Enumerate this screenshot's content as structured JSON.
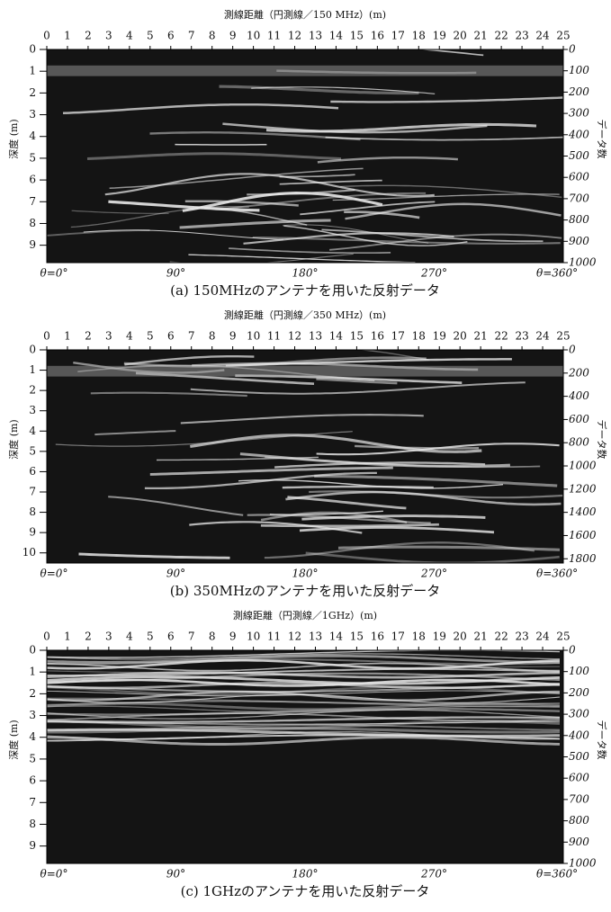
{
  "panels": [
    {
      "axis_title": "測線距離（円測線／150 MHz）(m)",
      "top_ticks": [
        0,
        1,
        2,
        3,
        4,
        5,
        6,
        7,
        8,
        9,
        10,
        11,
        12,
        13,
        14,
        15,
        16,
        17,
        18,
        19,
        20,
        21,
        22,
        23,
        24,
        25
      ],
      "depth_label": "深度 (m)",
      "depth_ticks": [
        0,
        1,
        2,
        3,
        4,
        5,
        6,
        7,
        8,
        9
      ],
      "data_label": "データ数",
      "data_ticks": [
        0,
        100,
        200,
        300,
        400,
        500,
        600,
        700,
        800,
        900,
        1000
      ],
      "angle_labels": [
        "θ=0°",
        "90°",
        "180°",
        "270°",
        "θ=360°"
      ],
      "caption": "(a) 150MHzのアンテナを用いた反射データ"
    },
    {
      "axis_title": "測線距離（円測線／350 MHz）(m)",
      "top_ticks": [
        0,
        1,
        2,
        3,
        4,
        5,
        6,
        7,
        8,
        9,
        10,
        11,
        12,
        13,
        14,
        15,
        16,
        17,
        18,
        19,
        20,
        21,
        22,
        23,
        24,
        25
      ],
      "depth_label": "深度 (m)",
      "depth_ticks": [
        0,
        1,
        2,
        3,
        4,
        5,
        6,
        7,
        8,
        9,
        10
      ],
      "data_label": "データ数",
      "data_ticks": [
        0,
        200,
        400,
        600,
        800,
        1000,
        1200,
        1400,
        1600,
        1800
      ],
      "angle_labels": [
        "θ=0°",
        "90°",
        "180°",
        "270°",
        "θ=360°"
      ],
      "caption": "(b) 350MHzのアンテナを用いた反射データ"
    },
    {
      "axis_title": "測線距離（円測線／1GHz）(m)",
      "top_ticks": [
        0,
        1,
        2,
        3,
        4,
        5,
        6,
        7,
        8,
        9,
        10,
        11,
        12,
        13,
        14,
        15,
        16,
        17,
        18,
        19,
        20,
        21,
        22,
        23,
        24,
        25
      ],
      "depth_label": "深度 (m)",
      "depth_ticks": [
        0,
        1,
        2,
        3,
        4,
        5,
        6,
        7,
        8,
        9
      ],
      "data_label": "データ数",
      "data_ticks": [
        0,
        100,
        200,
        300,
        400,
        500,
        600,
        700,
        800,
        900,
        1000
      ],
      "angle_labels": [
        "θ=0°",
        "90°",
        "180°",
        "270°",
        "θ=360°"
      ],
      "caption": "(c) 1GHzのアンテナを用いた反射データ"
    }
  ]
}
